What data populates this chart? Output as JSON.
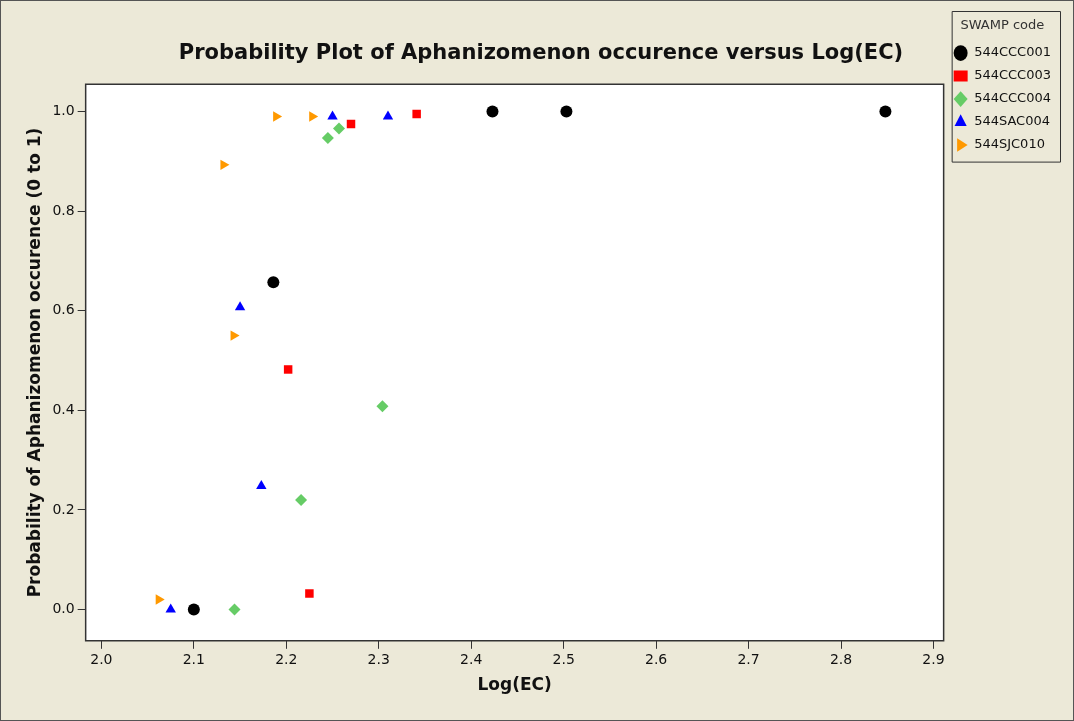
{
  "chart_data": {
    "type": "scatter",
    "title": "Probability Plot of Aphanizomenon occurence versus Log(EC)",
    "xlabel": "Log(EC)",
    "ylabel": "Probability of Aphanizomenon occurence (0 to 1)",
    "legend_title": "SWAMP code",
    "legend": "top right",
    "grid": false,
    "xlim": [
      1.983,
      2.911
    ],
    "xticks": [
      {
        "value": 2.0,
        "label": "2.0"
      },
      {
        "value": 2.1,
        "label": "2.1"
      },
      {
        "value": 2.2,
        "label": "2.2"
      },
      {
        "value": 2.3,
        "label": "2.3"
      },
      {
        "value": 2.4,
        "label": "2.4"
      },
      {
        "value": 2.5,
        "label": "2.5"
      },
      {
        "value": 2.6,
        "label": "2.6"
      },
      {
        "value": 2.7,
        "label": "2.7"
      },
      {
        "value": 2.8,
        "label": "2.8"
      },
      {
        "value": 2.9,
        "label": "2.9"
      }
    ],
    "ylim": [
      -0.063,
      1.055
    ],
    "yticks": [
      {
        "value": 0,
        "label": "0.0"
      },
      {
        "value": 0.2,
        "label": "0.2"
      },
      {
        "value": 0.4,
        "label": "0.4"
      },
      {
        "value": 0.6,
        "label": "0.6"
      },
      {
        "value": 0.8,
        "label": "0.8"
      },
      {
        "value": 1.0,
        "label": "1.0"
      }
    ],
    "series": [
      {
        "name": "544CCC001",
        "color": "#000000",
        "marker": "circle",
        "x": [
          2.1,
          2.186,
          2.423,
          2.503,
          2.848
        ],
        "values": [
          0.0,
          0.657,
          1.0,
          1.0,
          1.0
        ]
      },
      {
        "name": "544CCC003",
        "color": "#ff0000",
        "marker": "square",
        "x": [
          2.202,
          2.225,
          2.27,
          2.341
        ],
        "values": [
          0.482,
          0.032,
          0.975,
          0.995
        ]
      },
      {
        "name": "544CCC004",
        "color": "#66cc66",
        "marker": "diamond",
        "x": [
          2.144,
          2.216,
          2.304,
          2.245,
          2.257
        ],
        "values": [
          0.0,
          0.22,
          0.408,
          0.947,
          0.966
        ]
      },
      {
        "name": "544SAC004",
        "color": "#0000ff",
        "marker": "triangle",
        "x": [
          2.075,
          2.15,
          2.173,
          2.25,
          2.31
        ],
        "values": [
          0.0,
          0.607,
          0.248,
          0.99,
          0.99
        ]
      },
      {
        "name": "544SJC010",
        "color": "#ff9900",
        "marker": "triangle-right",
        "x": [
          2.062,
          2.132,
          2.143,
          2.189,
          2.228
        ],
        "values": [
          0.02,
          0.893,
          0.55,
          0.99,
          0.99
        ]
      }
    ]
  }
}
